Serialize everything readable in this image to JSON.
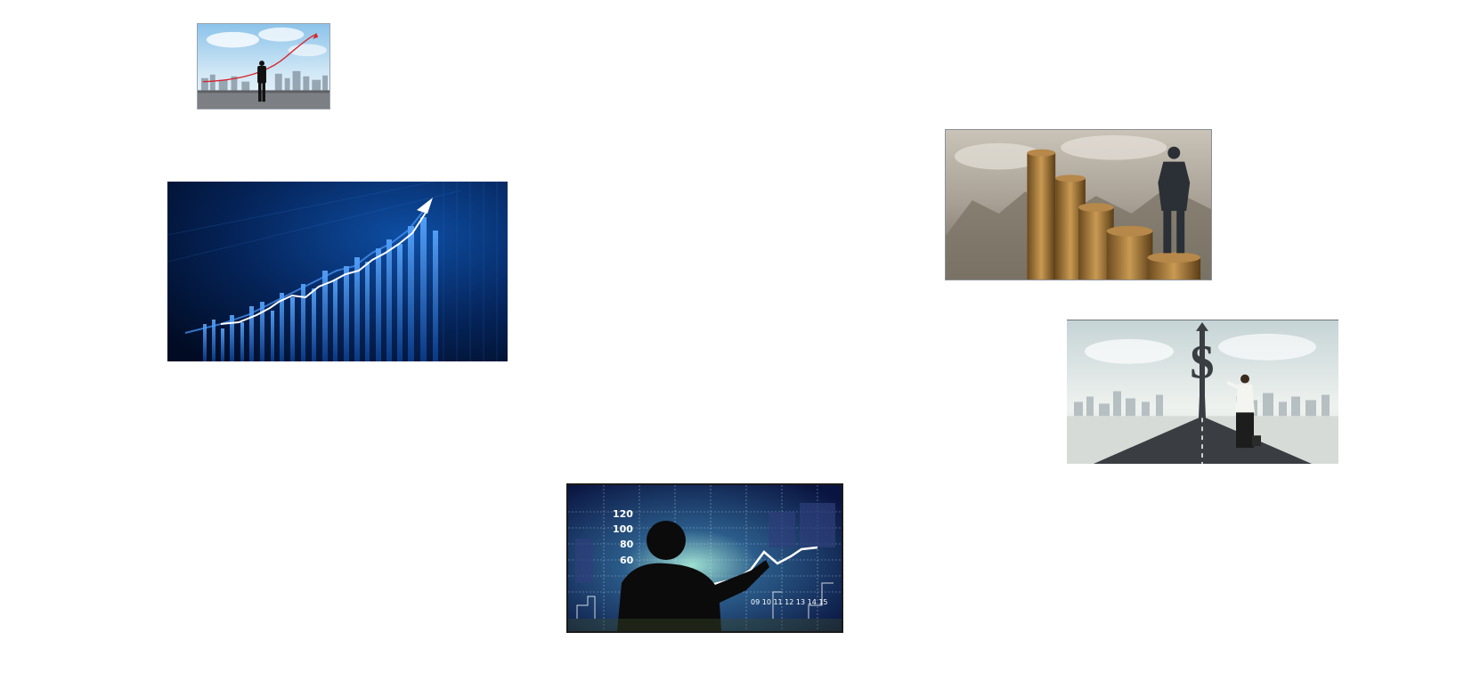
{
  "images": {
    "skyline": {
      "alt": "Businessman on rooftop looking at city skyline with rising red arrow"
    },
    "bluechart": {
      "alt": "Glowing blue financial bar chart with rising arrow"
    },
    "coins": {
      "alt": "Businessman standing on stacks of coins looking at mountains"
    },
    "road": {
      "alt": "Businessman with briefcase drawing dollar sign at the end of a road"
    },
    "presenter": {
      "alt": "Silhouette of man pointing at stock chart screen",
      "axis_labels": [
        "120",
        "100",
        "80",
        "60"
      ],
      "date_labels": "09 10 11 12 13 14 15"
    }
  },
  "colors": {
    "background": "#ffffff",
    "sky_blue": "#a9d2ee",
    "chart_blue": "#0a2f6b",
    "arrow_red": "#d8232a"
  }
}
